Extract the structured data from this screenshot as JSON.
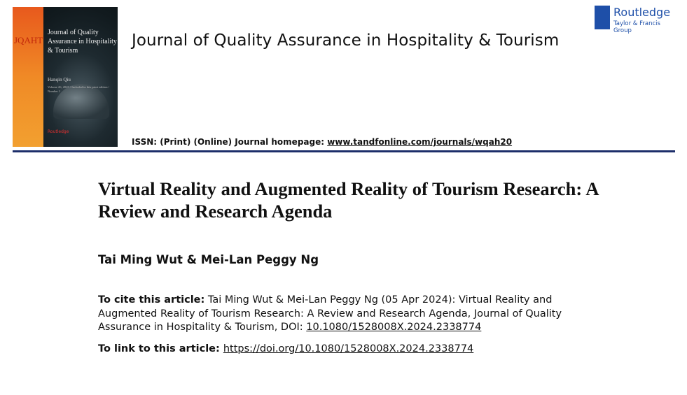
{
  "cover": {
    "abbr": "JQAHT",
    "title": "Journal of Quality Assurance in Hospitality & Tourism",
    "editor": "Hanqin Qiu",
    "details": "Volume 26, 2025 / Included in this print edition / Number 1",
    "publisher": "Routledge"
  },
  "journal_title": "Journal of Quality Assurance in Hospitality & Tourism",
  "issn": {
    "text": "ISSN: (Print) (Online) Journal homepage: ",
    "link": "www.tandfonline.com/journals/wqah20"
  },
  "logo": {
    "name": "Routledge",
    "sub": "Taylor & Francis Group",
    "mark": "ROUTLEDGE"
  },
  "article_title": "Virtual Reality and Augmented Reality of Tourism Research: A Review and Research Agenda",
  "authors": "Tai Ming Wut & Mei-Lan Peggy Ng",
  "cite": {
    "label": "To cite this article:",
    "text": " Tai Ming Wut & Mei-Lan Peggy Ng (05 Apr 2024): Virtual Reality and Augmented Reality of Tourism Research: A Review and Research Agenda, Journal of Quality Assurance in Hospitality & Tourism, DOI: ",
    "doi": "10.1080/1528008X.2024.2338774"
  },
  "link": {
    "label": "To link to this article: ",
    "url": "https://doi.org/10.1080/1528008X.2024.2338774"
  },
  "colors": {
    "rule": "#1d2e6a",
    "brand": "#1e4fa8"
  }
}
